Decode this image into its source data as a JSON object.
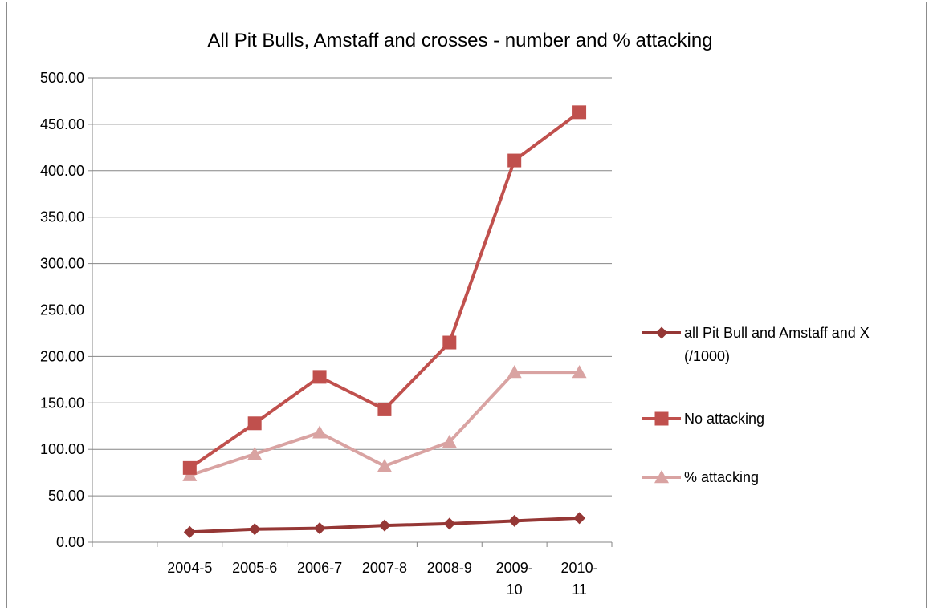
{
  "chart_data": {
    "type": "line",
    "title": "All Pit Bulls, Amstaff and crosses - number and % attacking",
    "xlabel": "",
    "ylabel": "",
    "ylim": [
      0,
      500
    ],
    "y_ticks": [
      "0.00",
      "50.00",
      "100.00",
      "150.00",
      "200.00",
      "250.00",
      "300.00",
      "350.00",
      "400.00",
      "450.00",
      "500.00"
    ],
    "categories": [
      [
        "",
        ""
      ],
      [
        "2004-5",
        ""
      ],
      [
        "2005-6",
        ""
      ],
      [
        "2006-7",
        ""
      ],
      [
        "2007-8",
        ""
      ],
      [
        "2008-9",
        ""
      ],
      [
        "2009-",
        "10"
      ],
      [
        "2010-",
        "11"
      ]
    ],
    "grid": "horizontal",
    "legend_position": "right",
    "series": [
      {
        "name": "all Pit Bull and Amstaff and X (/1000)",
        "legend_lines": [
          "all Pit Bull and Amstaff and X",
          "(/1000)"
        ],
        "marker": "diamond",
        "color": "#953735",
        "values": [
          null,
          11,
          14,
          15,
          18,
          20,
          23,
          26
        ]
      },
      {
        "name": "No attacking",
        "legend_lines": [
          "No attacking"
        ],
        "marker": "square",
        "color": "#c0504d",
        "values": [
          null,
          80,
          128,
          178,
          143,
          215,
          411,
          463
        ]
      },
      {
        "name": "% attacking",
        "legend_lines": [
          "% attacking"
        ],
        "marker": "triangle",
        "color": "#d9a3a2",
        "values": [
          null,
          72,
          95,
          118,
          82,
          108,
          183,
          183
        ]
      }
    ]
  }
}
